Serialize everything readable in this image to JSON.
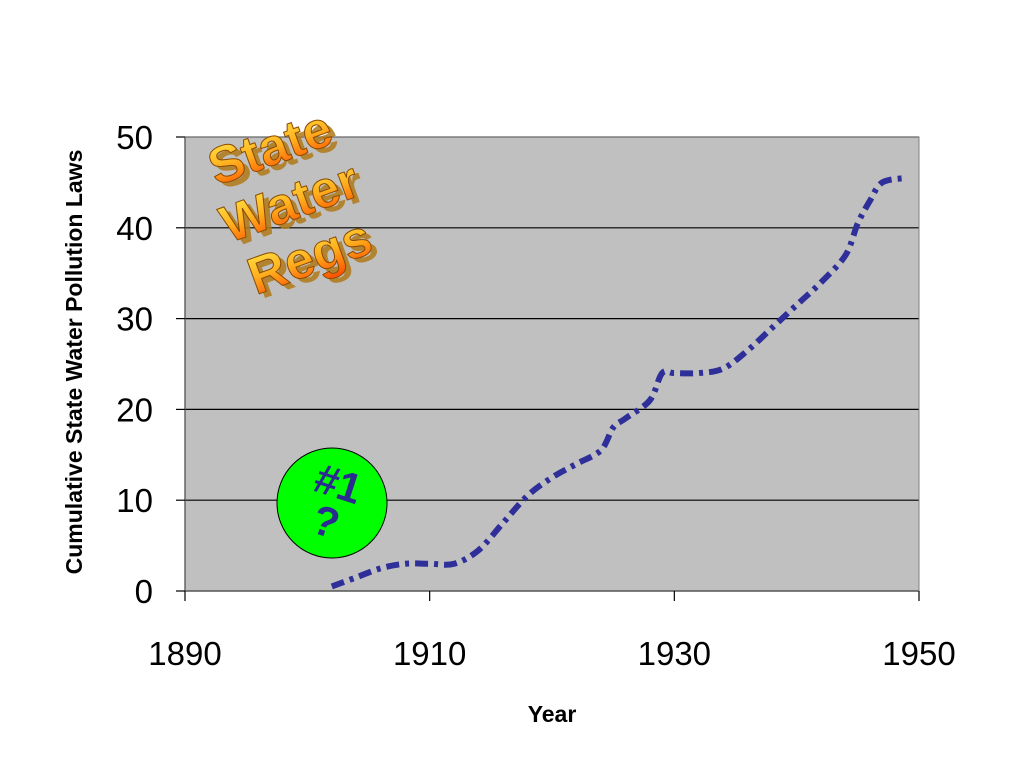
{
  "chart_data": {
    "type": "line",
    "xlabel": "Year",
    "ylabel": "Cumulative State Water Pollution Laws",
    "xlim": [
      1890,
      1950
    ],
    "ylim": [
      0,
      50
    ],
    "x_ticks": [
      "1890",
      "1910",
      "1930",
      "1950"
    ],
    "y_ticks": [
      "0",
      "10",
      "20",
      "30",
      "40",
      "50"
    ],
    "grid": "horizontal",
    "plot_background": "#c0c0c0",
    "series": [
      {
        "color": "#2f2f9a",
        "style": "thick dotted",
        "x": [
          1902,
          1904,
          1906,
          1908,
          1910,
          1912,
          1914,
          1916,
          1918,
          1920,
          1922,
          1924,
          1925,
          1926,
          1928,
          1929,
          1930,
          1932,
          1934,
          1936,
          1938,
          1940,
          1942,
          1944,
          1945,
          1946,
          1947,
          1949
        ],
        "y": [
          0.5,
          1.5,
          2.5,
          3,
          3,
          3,
          4.5,
          7.5,
          10.5,
          12.5,
          14,
          15.5,
          18,
          19,
          21,
          24,
          24,
          24,
          24.5,
          26.5,
          29,
          31.5,
          34,
          37,
          40.5,
          43,
          45,
          45.5
        ]
      }
    ]
  },
  "wordart": {
    "lines": [
      "State",
      "Water",
      "Regs"
    ]
  },
  "badge": {
    "lines": [
      "#1",
      "?"
    ],
    "fill": "#00ff00"
  }
}
